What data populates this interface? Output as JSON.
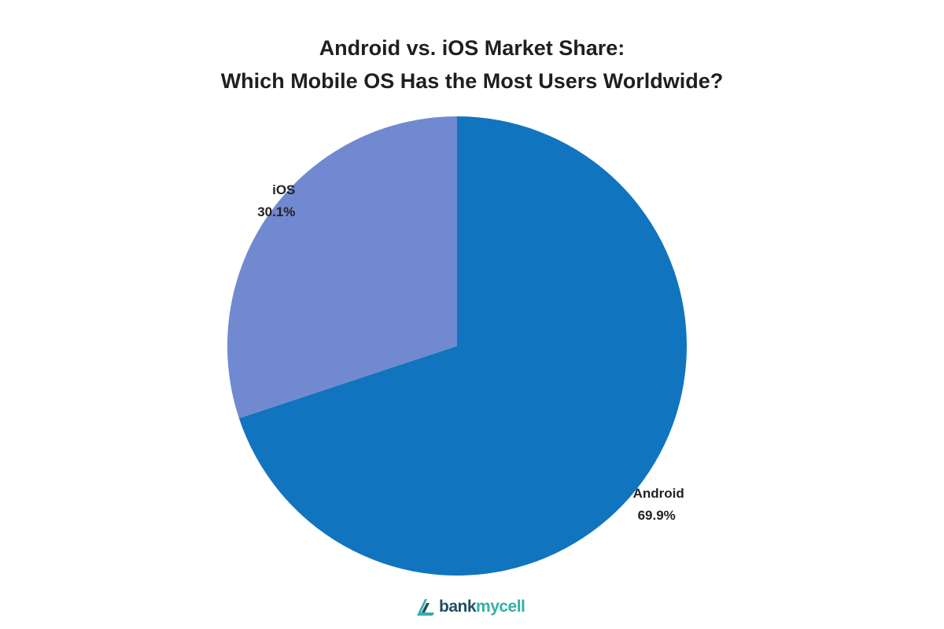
{
  "chart_data": {
    "type": "pie",
    "title": "Android vs. iOS Market Share:",
    "subtitle": "Which Mobile OS Has the Most Users Worldwide?",
    "slices": [
      {
        "label": "Android",
        "value": 69.9,
        "value_label": "69.9%",
        "color": "#1174bf"
      },
      {
        "label": "iOS",
        "value": 30.1,
        "value_label": "30.1%",
        "color": "#7189d0"
      }
    ],
    "start": "12 o'clock",
    "direction": "clockwise",
    "legend": "none"
  },
  "branding": {
    "logo_text_a": "bank",
    "logo_text_b": "mycell",
    "colors": {
      "dark": "#1f4f63",
      "accent": "#32b0a6"
    }
  }
}
